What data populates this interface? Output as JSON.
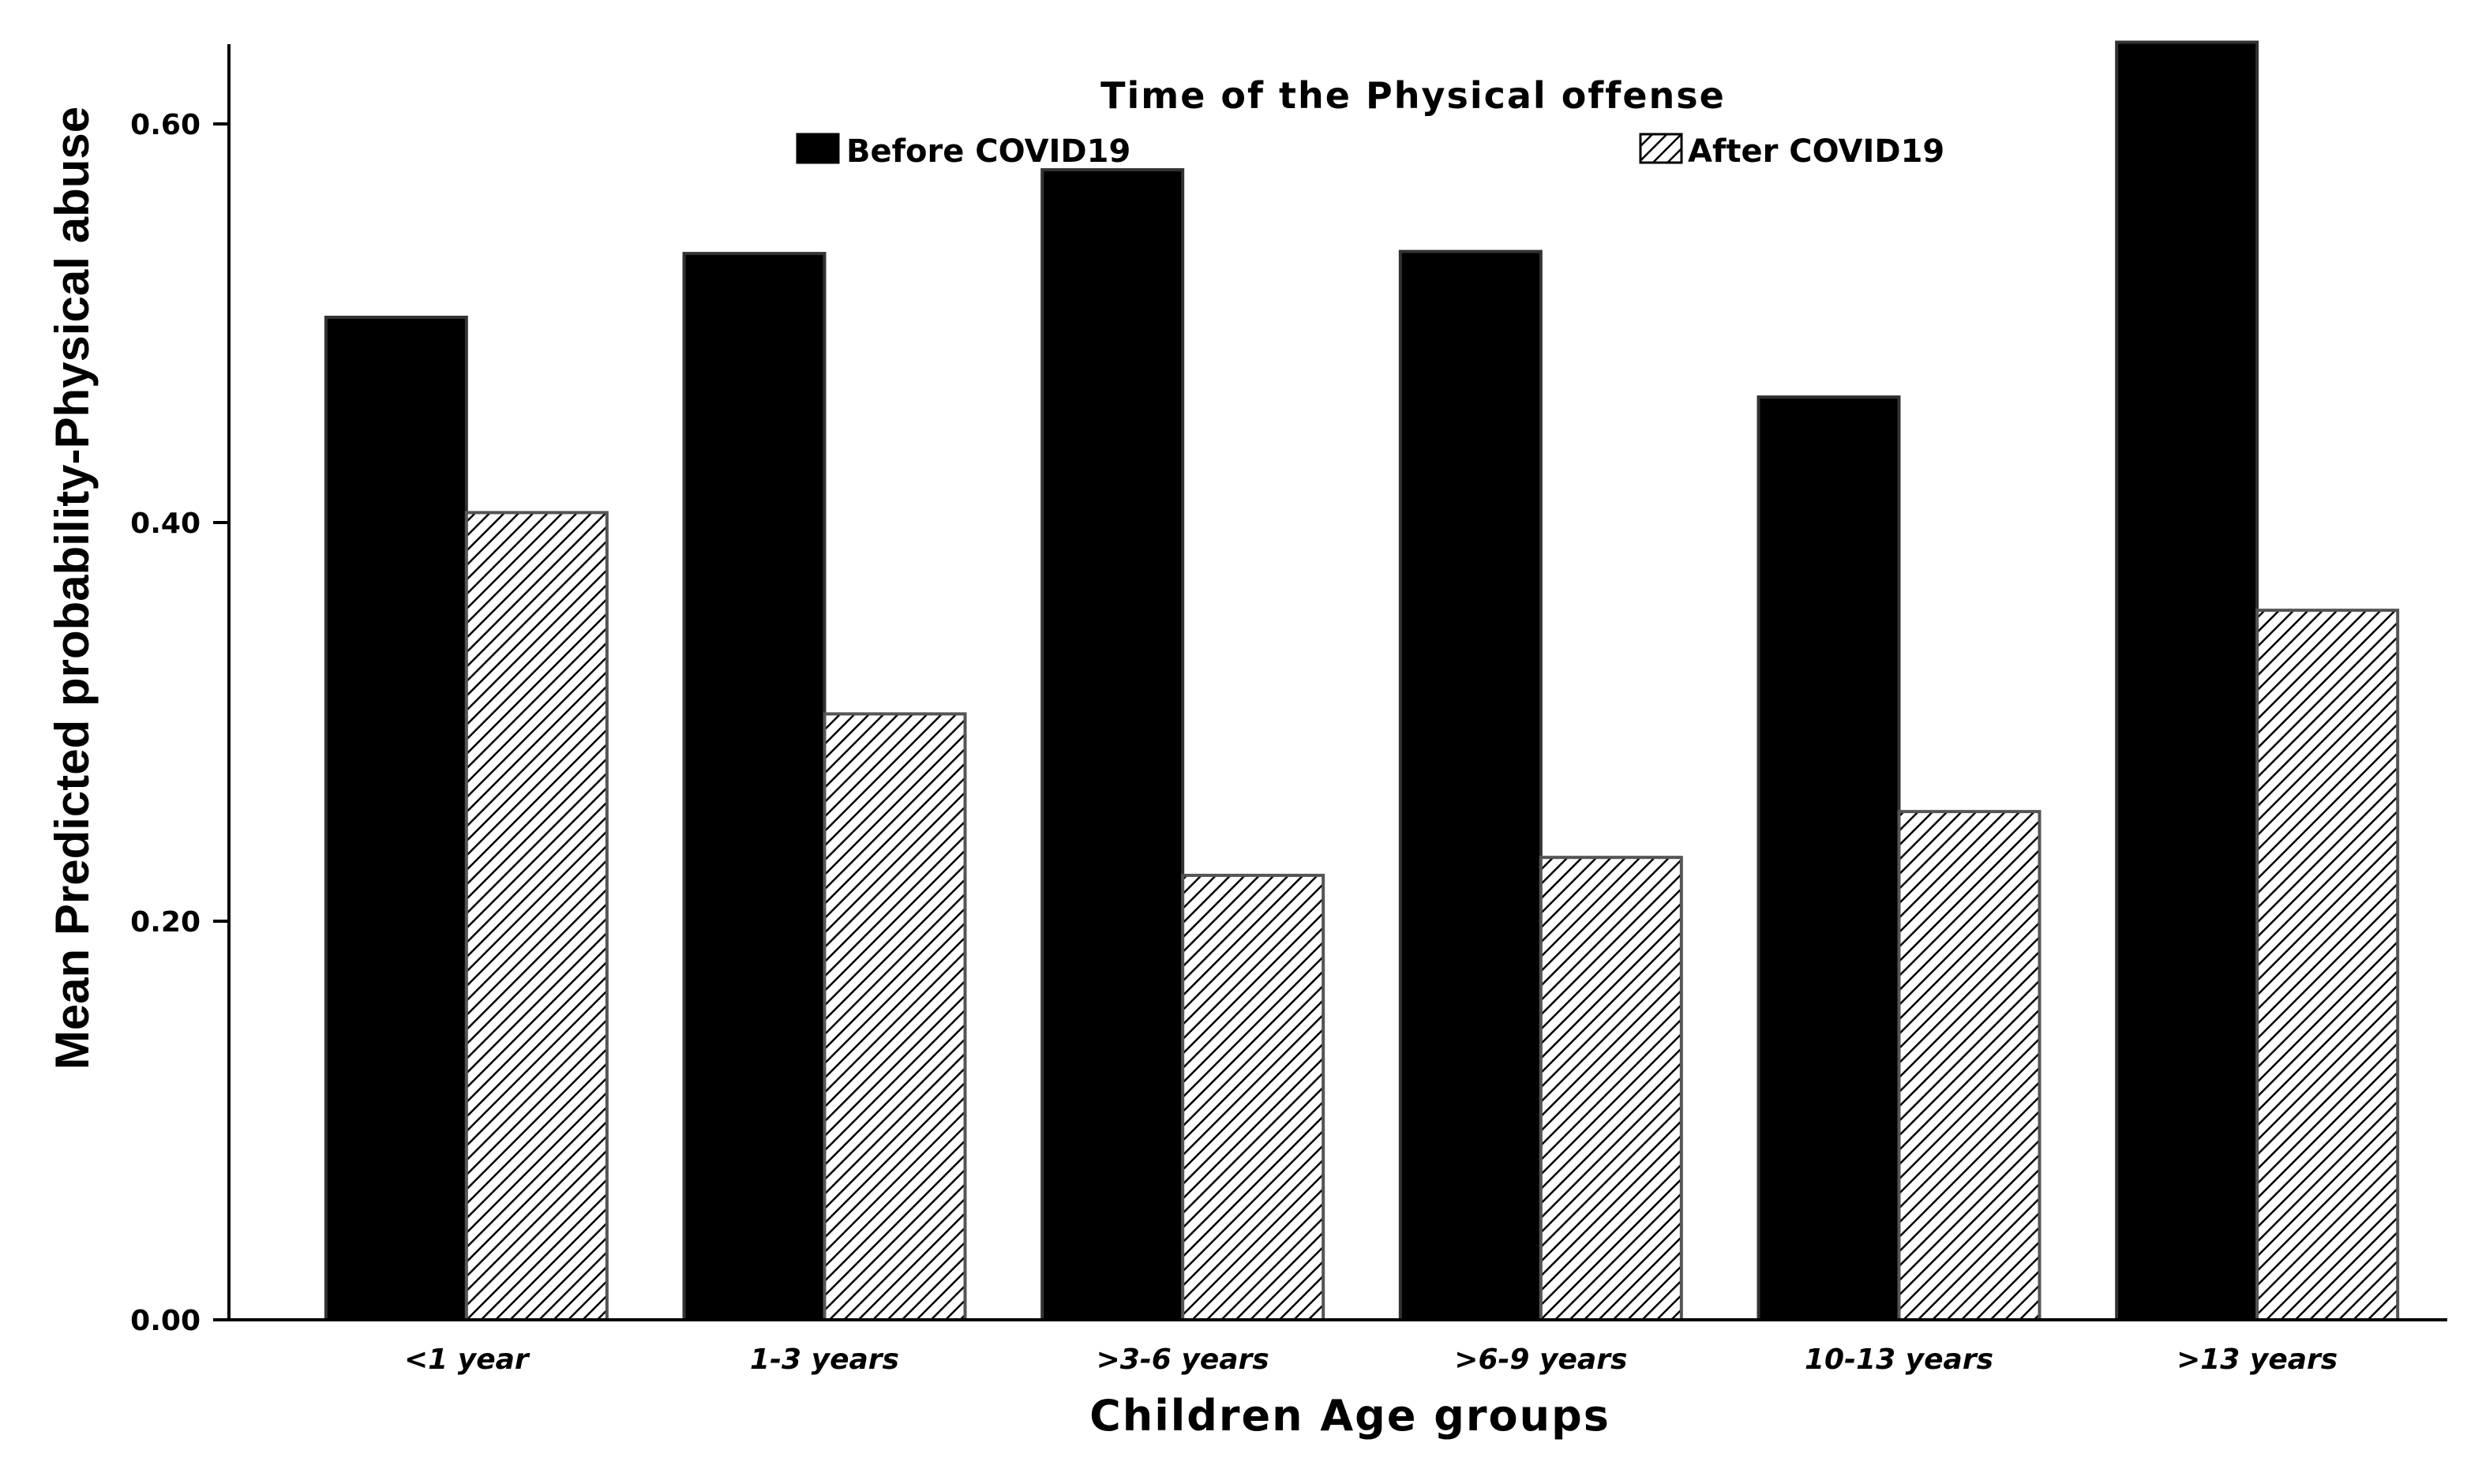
{
  "chart_data": {
    "type": "bar",
    "xlabel": "Children Age groups",
    "ylabel": "Mean Predicted probability-Physical abuse",
    "ylim": [
      0,
      0.64
    ],
    "yticks": [
      "0.00",
      "0.20",
      "0.40",
      "0.60"
    ],
    "ytick_values": [
      0,
      0.2,
      0.4,
      0.6
    ],
    "categories": [
      "<1 year",
      "1-3 years",
      ">3-6 years",
      ">6-9 years",
      "10-13 years",
      ">13 years"
    ],
    "legend": {
      "title": "Time of the Physical offense",
      "placement": "top"
    },
    "series": [
      {
        "name": "Before COVID19",
        "fill": "solid",
        "color": "#000000",
        "values": [
          0.503,
          0.535,
          0.577,
          0.536,
          0.463,
          0.641
        ]
      },
      {
        "name": "After COVID19",
        "fill": "hatched",
        "color": "#000000",
        "values": [
          0.405,
          0.304,
          0.223,
          0.232,
          0.255,
          0.356
        ]
      }
    ]
  }
}
